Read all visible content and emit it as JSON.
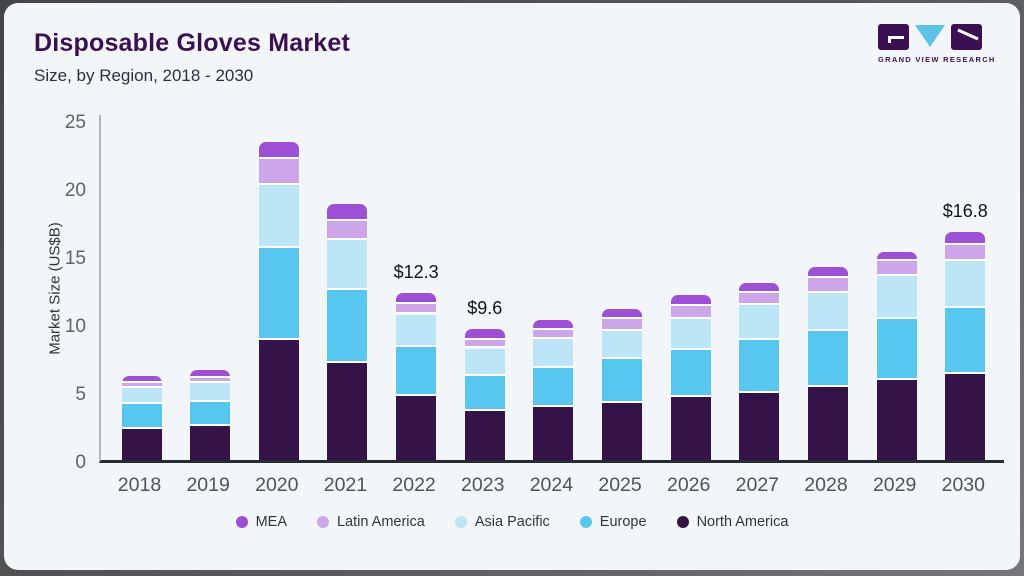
{
  "header": {
    "title": "Disposable Gloves Market",
    "subtitle": "Size, by Region, 2018 - 2030",
    "logo_text": "GRAND VIEW RESEARCH"
  },
  "chart_data": {
    "type": "bar",
    "stacked": true,
    "title": "Disposable Gloves Market",
    "subtitle": "Size, by Region, 2018 - 2030",
    "xlabel": "",
    "ylabel": "Market Size (US$B)",
    "ylim": [
      0,
      25
    ],
    "yticks": [
      0,
      5,
      10,
      15,
      20,
      25
    ],
    "grid": false,
    "legend_position": "bottom",
    "categories": [
      "2018",
      "2019",
      "2020",
      "2021",
      "2022",
      "2023",
      "2024",
      "2025",
      "2026",
      "2027",
      "2028",
      "2029",
      "2030"
    ],
    "series": [
      {
        "name": "North America",
        "color": "#331348",
        "values": [
          2.3,
          2.5,
          8.8,
          7.1,
          4.7,
          3.6,
          3.9,
          4.2,
          4.6,
          4.95,
          5.4,
          5.9,
          6.3
        ]
      },
      {
        "name": "Europe",
        "color": "#57c7f0",
        "values": [
          1.8,
          1.8,
          6.8,
          5.4,
          3.6,
          2.6,
          2.9,
          3.2,
          3.5,
          3.85,
          4.1,
          4.5,
          4.9
        ]
      },
      {
        "name": "Asia Pacific",
        "color": "#bde5f8",
        "values": [
          1.2,
          1.35,
          4.6,
          3.7,
          2.4,
          2.0,
          2.1,
          2.1,
          2.3,
          2.6,
          2.8,
          3.1,
          3.4
        ]
      },
      {
        "name": "Latin America",
        "color": "#cda6e9",
        "values": [
          0.35,
          0.4,
          1.9,
          1.4,
          0.8,
          0.6,
          0.65,
          0.9,
          0.9,
          0.9,
          1.1,
          1.1,
          1.2
        ]
      },
      {
        "name": "MEA",
        "color": "#9d50d6",
        "values": [
          0.55,
          0.6,
          1.3,
          1.2,
          0.8,
          0.8,
          0.75,
          0.7,
          0.8,
          0.7,
          0.8,
          0.7,
          1.0
        ]
      }
    ],
    "totals": [
      6.2,
      6.65,
      23.4,
      18.8,
      12.3,
      9.6,
      10.3,
      11.1,
      12.1,
      13.0,
      14.2,
      15.3,
      16.8
    ],
    "annotations": [
      {
        "category": "2022",
        "text": "$12.3"
      },
      {
        "category": "2023",
        "text": "$9.6"
      },
      {
        "category": "2030",
        "text": "$16.8"
      }
    ],
    "legend": [
      "MEA",
      "Latin America",
      "Asia Pacific",
      "Europe",
      "North America"
    ]
  }
}
